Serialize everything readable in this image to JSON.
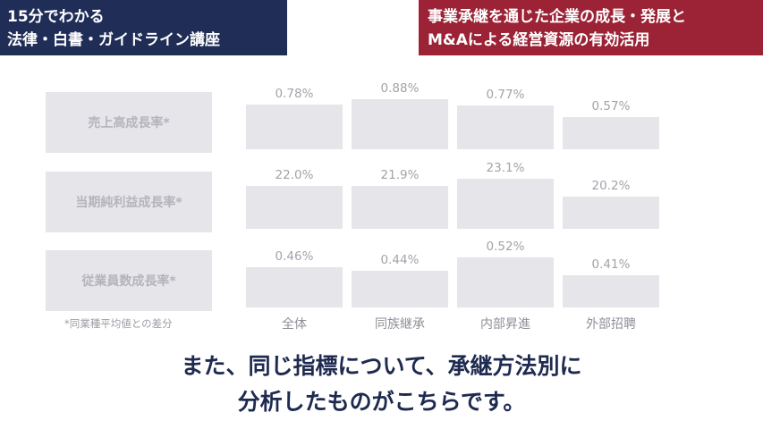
{
  "header": {
    "left_line1": "15分でわかる",
    "left_line2": "法律・白書・ガイドライン講座",
    "right_line1": "事業承継を通じた企業の成長・発展と",
    "right_line2": "M&Aによる経営資源の有効活用"
  },
  "footnote": "*同業種平均値との差分",
  "caption": {
    "line1": "また、同じ指標について、承継方法別に",
    "line2": "分析したものがこちらです。"
  },
  "colors": {
    "left_banner": "#1f2d57",
    "right_banner": "#9b2335",
    "bar": "#e5e5ea",
    "caption_text": "#1e2a4f"
  },
  "chart_data": {
    "type": "bar",
    "categories": [
      "全体",
      "同族継承",
      "内部昇進",
      "外部招聘"
    ],
    "series": [
      {
        "name": "売上高成長率*",
        "values": [
          0.78,
          0.88,
          0.77,
          0.57
        ],
        "labels": [
          "0.78%",
          "0.88%",
          "0.77%",
          "0.57%"
        ]
      },
      {
        "name": "当期純利益成長率*",
        "values": [
          22.0,
          21.9,
          23.1,
          20.2
        ],
        "labels": [
          "22.0%",
          "21.9%",
          "23.1%",
          "20.2%"
        ]
      },
      {
        "name": "従業員数成長率*",
        "values": [
          0.46,
          0.44,
          0.52,
          0.41
        ],
        "labels": [
          "0.46%",
          "0.44%",
          "0.52%",
          "0.41%"
        ]
      }
    ],
    "unit": "%",
    "grid": false,
    "legend": "none"
  }
}
